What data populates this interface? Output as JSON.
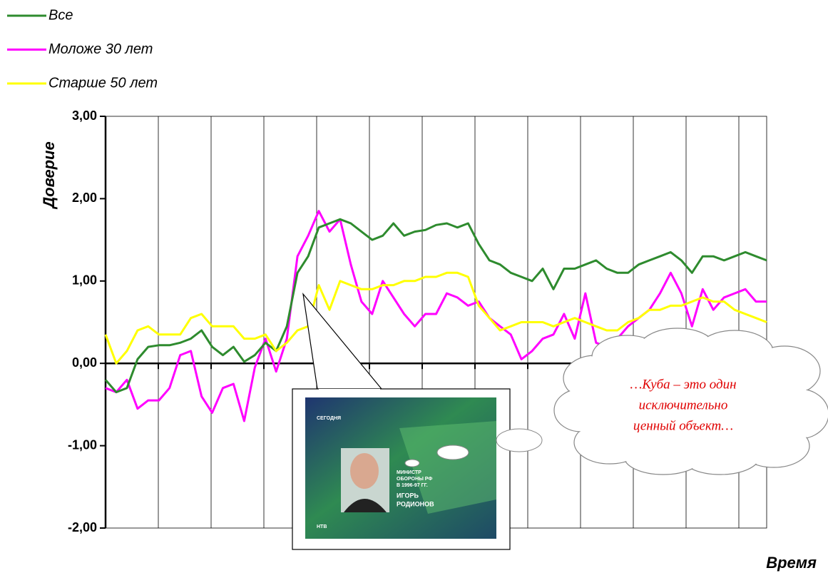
{
  "chart_data": {
    "type": "line",
    "legend_labels_italic": true,
    "y_label": "Доверие",
    "x_label": "Время",
    "categories": [
      null,
      null,
      null,
      null,
      null,
      null,
      null,
      null,
      null,
      null,
      null,
      null,
      null,
      null,
      null,
      null,
      null,
      null,
      null,
      null,
      null,
      null,
      null,
      null,
      null,
      null,
      null,
      null,
      null,
      null,
      null,
      null,
      null,
      null,
      null,
      null,
      null,
      null,
      null,
      null,
      null,
      null,
      null,
      null,
      null,
      null,
      null,
      null,
      null,
      null,
      null,
      null,
      null,
      null,
      null,
      null,
      null,
      null,
      null,
      null,
      null,
      null,
      null
    ],
    "series": [
      {
        "name": "Все",
        "color": "#2e8b2e",
        "values": [
          -0.2,
          -0.35,
          -0.3,
          0.05,
          0.2,
          0.22,
          0.22,
          0.25,
          0.3,
          0.4,
          0.2,
          0.1,
          0.2,
          0.02,
          0.1,
          0.25,
          0.15,
          0.45,
          1.1,
          1.3,
          1.65,
          1.7,
          1.75,
          1.7,
          1.6,
          1.5,
          1.55,
          1.7,
          1.55,
          1.6,
          1.62,
          1.68,
          1.7,
          1.65,
          1.7,
          1.45,
          1.25,
          1.2,
          1.1,
          1.05,
          1.0,
          1.15,
          0.9,
          1.15,
          1.15,
          1.2,
          1.25,
          1.15,
          1.1,
          1.1,
          1.2,
          1.25,
          1.3,
          1.35,
          1.25,
          1.1,
          1.3,
          1.3,
          1.25,
          1.3,
          1.35,
          1.3,
          1.25
        ]
      },
      {
        "name": "Моложе 30 лет",
        "color": "#ff00ff",
        "values": [
          -0.3,
          -0.35,
          -0.2,
          -0.55,
          -0.45,
          -0.45,
          -0.3,
          0.1,
          0.15,
          -0.4,
          -0.6,
          -0.3,
          -0.25,
          -0.7,
          -0.05,
          0.3,
          -0.1,
          0.3,
          1.3,
          1.55,
          1.85,
          1.6,
          1.75,
          1.2,
          0.75,
          0.6,
          1.0,
          0.8,
          0.6,
          0.45,
          0.6,
          0.6,
          0.85,
          0.8,
          0.7,
          0.75,
          0.55,
          0.45,
          0.35,
          0.05,
          0.15,
          0.3,
          0.35,
          0.6,
          0.3,
          0.85,
          0.25,
          0.2,
          0.3,
          0.45,
          0.55,
          0.65,
          0.85,
          1.1,
          0.85,
          0.45,
          0.9,
          0.65,
          0.8,
          0.85,
          0.9,
          0.75,
          0.75
        ]
      },
      {
        "name": "Старше 50 лет",
        "color": "#ffff00",
        "values": [
          0.35,
          0.0,
          0.15,
          0.4,
          0.45,
          0.35,
          0.35,
          0.35,
          0.55,
          0.6,
          0.45,
          0.45,
          0.45,
          0.3,
          0.3,
          0.35,
          0.15,
          0.25,
          0.4,
          0.45,
          0.95,
          0.65,
          1.0,
          0.95,
          0.9,
          0.9,
          0.95,
          0.95,
          1.0,
          1.0,
          1.05,
          1.05,
          1.1,
          1.1,
          1.05,
          0.7,
          0.55,
          0.4,
          0.45,
          0.5,
          0.5,
          0.5,
          0.45,
          0.5,
          0.55,
          0.5,
          0.45,
          0.4,
          0.4,
          0.5,
          0.55,
          0.65,
          0.65,
          0.7,
          0.7,
          0.75,
          0.8,
          0.75,
          0.75,
          0.65,
          0.6,
          0.55,
          0.5
        ]
      }
    ],
    "ylim": [
      -2,
      3
    ],
    "yticks": [
      {
        "value": 3,
        "label": "3,00"
      },
      {
        "value": 2,
        "label": "2,00"
      },
      {
        "value": 1,
        "label": "1,00"
      },
      {
        "value": 0,
        "label": "0,00"
      },
      {
        "value": -1,
        "label": "-1,00"
      },
      {
        "value": -2,
        "label": "-2,00"
      }
    ],
    "annotation": [
      "…Куба  – это один",
      "исключительно",
      "ценный объект…"
    ],
    "image_texts": {
      "channel": "СЕГОДНЯ",
      "caption": [
        "МИНИСТР",
        "ОБОРОНЫ РФ",
        "В 1996-97 ГГ."
      ],
      "name": [
        "ИГОРЬ",
        "РОДИОНОВ"
      ],
      "logo": "НТВ"
    }
  }
}
